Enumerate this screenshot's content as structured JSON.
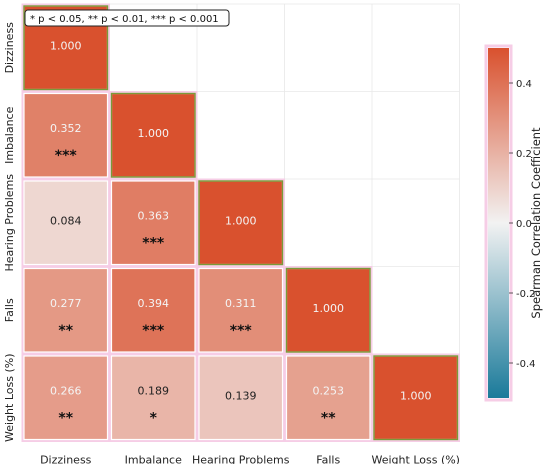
{
  "legend_box": {
    "text": "* p < 0.05, ** p < 0.01, *** p < 0.001"
  },
  "colors": {
    "negative": "#1a7a9a",
    "neutral": "#f2f2f2",
    "positive": "#d9512e",
    "cell_edge_accent": "#7a9a3a",
    "frame_pink": "#f6cde6"
  },
  "chart_data": {
    "type": "heatmap",
    "mask": "lower-triangle",
    "categories": [
      "Dizziness",
      "Imbalance",
      "Hearing Problems",
      "Falls",
      "Weight Loss (%)"
    ],
    "cells": [
      {
        "row": "Dizziness",
        "col": "Dizziness",
        "value": 1.0,
        "label": "1.000",
        "sig": ""
      },
      {
        "row": "Imbalance",
        "col": "Dizziness",
        "value": 0.352,
        "label": "0.352",
        "sig": "***"
      },
      {
        "row": "Imbalance",
        "col": "Imbalance",
        "value": 1.0,
        "label": "1.000",
        "sig": ""
      },
      {
        "row": "Hearing Problems",
        "col": "Dizziness",
        "value": 0.084,
        "label": "0.084",
        "sig": ""
      },
      {
        "row": "Hearing Problems",
        "col": "Imbalance",
        "value": 0.363,
        "label": "0.363",
        "sig": "***"
      },
      {
        "row": "Hearing Problems",
        "col": "Hearing Problems",
        "value": 1.0,
        "label": "1.000",
        "sig": ""
      },
      {
        "row": "Falls",
        "col": "Dizziness",
        "value": 0.277,
        "label": "0.277",
        "sig": "**"
      },
      {
        "row": "Falls",
        "col": "Imbalance",
        "value": 0.394,
        "label": "0.394",
        "sig": "***"
      },
      {
        "row": "Falls",
        "col": "Hearing Problems",
        "value": 0.311,
        "label": "0.311",
        "sig": "***"
      },
      {
        "row": "Falls",
        "col": "Falls",
        "value": 1.0,
        "label": "1.000",
        "sig": ""
      },
      {
        "row": "Weight Loss (%)",
        "col": "Dizziness",
        "value": 0.266,
        "label": "0.266",
        "sig": "**"
      },
      {
        "row": "Weight Loss (%)",
        "col": "Imbalance",
        "value": 0.189,
        "label": "0.189",
        "sig": "*"
      },
      {
        "row": "Weight Loss (%)",
        "col": "Hearing Problems",
        "value": 0.139,
        "label": "0.139",
        "sig": ""
      },
      {
        "row": "Weight Loss (%)",
        "col": "Falls",
        "value": 0.253,
        "label": "0.253",
        "sig": "**"
      },
      {
        "row": "Weight Loss (%)",
        "col": "Weight Loss (%)",
        "value": 1.0,
        "label": "1.000",
        "sig": ""
      }
    ],
    "colorbar": {
      "label": "Spearman Correlation Coefficient",
      "vmin": -0.5,
      "vmax": 0.5,
      "ticks": [
        0.4,
        0.2,
        0.0,
        -0.2,
        -0.4
      ],
      "tick_labels": [
        "0.4",
        "0.2",
        "0.0",
        "-0.2",
        "-0.4"
      ]
    },
    "grid": true
  }
}
